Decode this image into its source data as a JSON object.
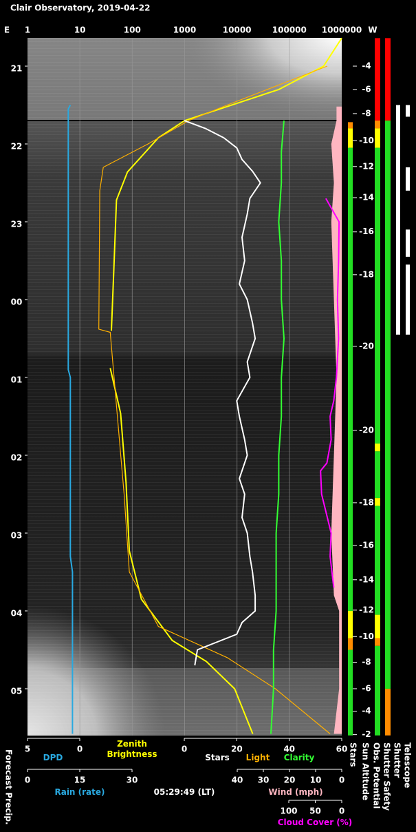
{
  "chart_data": {
    "type": "line",
    "title": "Clair Observatory, 2019-04-22",
    "east_label": "E",
    "west_label": "W",
    "current_time": "05:29:49 (LT)",
    "time_lim": [
      20.637,
      29.602
    ],
    "time_ticks": [
      {
        "value": 21,
        "label": "21"
      },
      {
        "value": 22,
        "label": "22"
      },
      {
        "value": 23,
        "label": "23"
      },
      {
        "value": 24,
        "label": "00"
      },
      {
        "value": 25,
        "label": "01"
      },
      {
        "value": 26,
        "label": "02"
      },
      {
        "value": 27,
        "label": "03"
      },
      {
        "value": 28,
        "label": "04"
      },
      {
        "value": 29,
        "label": "05"
      }
    ],
    "grid": true,
    "axes": {
      "brightness": {
        "log": true,
        "lim": [
          1,
          1000000
        ],
        "ticks": [
          1,
          10,
          100,
          1000,
          10000,
          100000,
          1000000
        ]
      },
      "dpd": {
        "lim": [
          5,
          0
        ],
        "ticks": [
          5,
          0
        ]
      },
      "stars": {
        "lim": [
          0,
          60
        ],
        "ticks": [
          0,
          20,
          40,
          60
        ]
      },
      "rain": {
        "label": "Rain (rate)",
        "color": "#29a9e0",
        "lim": [
          0,
          30
        ],
        "ticks": [
          0,
          15,
          30
        ]
      },
      "wind": {
        "lim": [
          40,
          0
        ],
        "ticks": [
          40,
          30,
          20,
          10,
          0
        ]
      },
      "cloud": {
        "lim": [
          100,
          0
        ],
        "ticks": [
          100,
          50,
          0
        ]
      }
    },
    "series": [
      {
        "name": "DPD",
        "color": "#29a9e0",
        "axis": "dpd",
        "x": [
          21.5,
          21.55,
          22.0,
          24.9,
          25.0,
          27.3,
          27.5,
          29.58
        ],
        "values": [
          0.9,
          1.1,
          1.1,
          1.1,
          0.9,
          0.9,
          0.7,
          0.7
        ]
      },
      {
        "name": "Zenith Brightness",
        "color": "#ffff00",
        "axis": "brightness",
        "x": [
          20.64,
          21.0,
          21.3,
          21.7,
          21.92,
          22.36,
          22.72,
          23.69,
          24.4,
          24.6,
          24.88,
          25.46,
          26.35,
          27.23,
          27.85,
          28.38,
          28.65,
          29.0,
          29.58
        ],
        "values": [
          1000000,
          450000,
          63000,
          1000,
          316,
          81,
          50,
          44,
          40,
          null,
          38,
          60,
          76,
          88,
          150,
          580,
          2600,
          9000,
          20000
        ]
      },
      {
        "name": "Light",
        "color": "#ffb000",
        "axis": "brightness",
        "x": [
          21.0,
          21.5,
          21.7,
          22.0,
          22.3,
          22.6,
          24.38,
          24.42,
          25.5,
          26.5,
          27.5,
          28.2,
          28.6,
          29.0,
          29.58
        ],
        "values": [
          530000,
          6500,
          1200,
          200,
          28,
          24,
          23,
          38,
          52,
          70,
          88,
          316,
          6500,
          54000,
          600000
        ]
      },
      {
        "name": "Stars",
        "color": "#ffffff",
        "axis": "stars",
        "x": [
          21.7,
          21.8,
          21.92,
          22.05,
          22.2,
          22.35,
          22.5,
          22.7,
          22.9,
          23.2,
          23.5,
          23.8,
          24.0,
          24.3,
          24.5,
          24.8,
          25.0,
          25.3,
          25.5,
          25.8,
          26.0,
          26.3,
          26.5,
          26.8,
          27.0,
          27.3,
          27.5,
          27.8,
          28.0,
          28.15,
          28.3,
          28.5,
          28.7
        ],
        "values": [
          0,
          8,
          15,
          20,
          22,
          26,
          29,
          25,
          24,
          22,
          23,
          21,
          24,
          26,
          27,
          24,
          25,
          20,
          21,
          23,
          24,
          21,
          23,
          22,
          24,
          25,
          26,
          27,
          27,
          22,
          20,
          5,
          4
        ]
      },
      {
        "name": "Clarity",
        "color": "#33ff33",
        "axis": "stars",
        "x": [
          21.7,
          22.1,
          22.5,
          23.0,
          23.5,
          24.0,
          24.5,
          25.0,
          25.5,
          26.0,
          26.5,
          27.0,
          27.5,
          28.0,
          28.5,
          29.0,
          29.58
        ],
        "values": [
          38,
          37,
          37,
          36,
          37,
          37,
          38,
          37,
          37,
          36,
          36,
          35,
          35,
          35,
          34,
          34,
          33
        ]
      },
      {
        "name": "Wind (mph)",
        "color": "#ffb6c1",
        "axis": "wind",
        "x": [
          21.52,
          21.7,
          22.0,
          22.5,
          23.0,
          24.0,
          25.0,
          26.0,
          27.0,
          27.8,
          28.0,
          29.0,
          29.58
        ],
        "values": [
          2,
          2,
          4,
          3,
          4,
          3,
          2,
          3,
          4,
          3,
          1,
          1,
          3
        ]
      },
      {
        "name": "Cloud Cover (%)",
        "color": "#ff00ff",
        "axis": "cloud",
        "x": [
          22.7,
          23.0,
          23.5,
          24.0,
          24.5,
          25.0,
          25.3,
          25.5,
          25.8,
          26.1,
          26.2,
          26.5,
          27.0,
          27.3,
          27.7
        ],
        "values": [
          30,
          5,
          6,
          8,
          6,
          10,
          15,
          22,
          20,
          28,
          40,
          38,
          20,
          22,
          15
        ]
      }
    ],
    "sun_altitude_label": "Sun Altitude",
    "sun_altitude_ticks": [
      {
        "time": 21.0,
        "value": -4
      },
      {
        "time": 21.3,
        "value": -6
      },
      {
        "time": 21.61,
        "value": -8
      },
      {
        "time": 21.96,
        "value": -10
      },
      {
        "time": 22.29,
        "value": -12
      },
      {
        "time": 22.69,
        "value": -14
      },
      {
        "time": 23.13,
        "value": -16
      },
      {
        "time": 23.68,
        "value": -18
      },
      {
        "time": 24.6,
        "value": -20
      },
      {
        "time": 25.68,
        "value": -20
      },
      {
        "time": 26.61,
        "value": -18
      },
      {
        "time": 27.16,
        "value": -16
      },
      {
        "time": 27.6,
        "value": -14
      },
      {
        "time": 27.99,
        "value": -12
      },
      {
        "time": 28.33,
        "value": -10
      },
      {
        "time": 28.66,
        "value": -8
      },
      {
        "time": 29.0,
        "value": -6
      },
      {
        "time": 29.29,
        "value": -4
      },
      {
        "time": 29.59,
        "value": -2
      }
    ],
    "forecast_label": "Forecast Precip.",
    "status_bars": [
      {
        "name": "Stars",
        "segments": [
          {
            "start": 21.72,
            "end": 21.8,
            "color": "#ff8c00"
          },
          {
            "start": 21.8,
            "end": 22.05,
            "color": "#ffff00"
          },
          {
            "start": 22.05,
            "end": 28.0,
            "color": "#22dd22"
          },
          {
            "start": 28.0,
            "end": 28.35,
            "color": "#ffff00"
          },
          {
            "start": 28.35,
            "end": 28.5,
            "color": "#ff8c00"
          },
          {
            "start": 28.5,
            "end": 29.6,
            "color": "#22dd22"
          }
        ]
      },
      {
        "name": "Obs. Potential",
        "segments": [
          {
            "start": 20.64,
            "end": 21.7,
            "color": "#ff0000"
          },
          {
            "start": 21.7,
            "end": 21.8,
            "color": "#ff8c00"
          },
          {
            "start": 21.8,
            "end": 22.05,
            "color": "#ffff00"
          },
          {
            "start": 22.05,
            "end": 25.85,
            "color": "#22dd22"
          },
          {
            "start": 25.85,
            "end": 25.95,
            "color": "#ffff00"
          },
          {
            "start": 25.95,
            "end": 26.55,
            "color": "#22dd22"
          },
          {
            "start": 26.55,
            "end": 26.65,
            "color": "#ffff00"
          },
          {
            "start": 26.65,
            "end": 28.05,
            "color": "#22dd22"
          },
          {
            "start": 28.05,
            "end": 28.35,
            "color": "#ffff00"
          },
          {
            "start": 28.35,
            "end": 28.45,
            "color": "#ff8c00"
          },
          {
            "start": 28.45,
            "end": 29.6,
            "color": "#22dd22"
          }
        ]
      },
      {
        "name": "Shutter Safety",
        "segments": [
          {
            "start": 20.64,
            "end": 21.7,
            "color": "#ff0000"
          },
          {
            "start": 21.7,
            "end": 29.0,
            "color": "#22dd22"
          },
          {
            "start": 29.0,
            "end": 29.6,
            "color": "#ff8c00"
          }
        ]
      },
      {
        "name": "Shutter",
        "segments": [
          {
            "start": 21.5,
            "end": 24.45,
            "color": "#ffffff"
          }
        ]
      },
      {
        "name": "Telescope",
        "segments": [
          {
            "start": 21.5,
            "end": 21.65,
            "color": "#ffffff"
          },
          {
            "start": 22.3,
            "end": 22.6,
            "color": "#ffffff"
          },
          {
            "start": 23.1,
            "end": 23.45,
            "color": "#ffffff"
          },
          {
            "start": 23.55,
            "end": 24.45,
            "color": "#ffffff"
          }
        ]
      }
    ]
  }
}
